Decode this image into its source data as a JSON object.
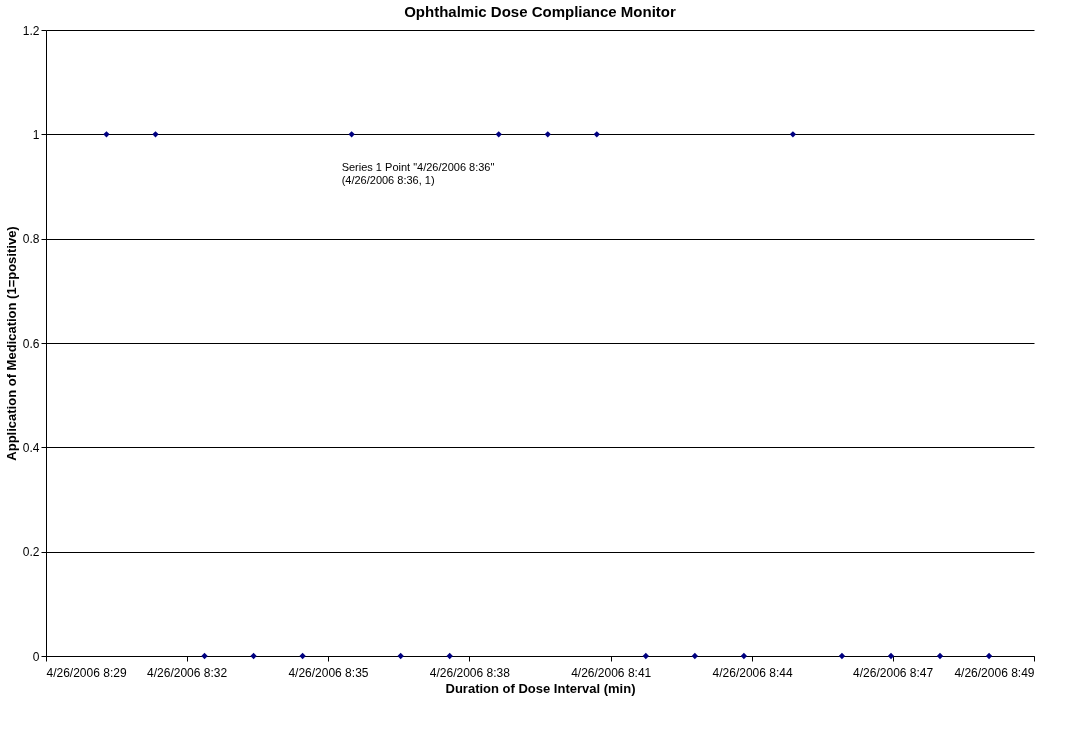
{
  "chart_data": {
    "type": "scatter",
    "title": "Ophthalmic Dose Compliance Monitor",
    "xlabel": "Duration of Dose Interval (min)",
    "ylabel": "Application of Medication (1=positive)",
    "x": [
      "2006-04-26T08:31",
      "2006-04-26T08:32",
      "2006-04-26T08:33",
      "2006-04-26T08:34",
      "2006-04-26T08:35",
      "2006-04-26T08:36",
      "2006-04-26T08:37",
      "2006-04-26T08:38",
      "2006-04-26T08:39",
      "2006-04-26T08:40",
      "2006-04-26T08:41",
      "2006-04-26T08:42",
      "2006-04-26T08:43",
      "2006-04-26T08:44",
      "2006-04-26T08:45",
      "2006-04-26T08:46",
      "2006-04-26T08:47",
      "2006-04-26T08:48",
      "2006-04-26T08:49"
    ],
    "series": [
      {
        "color": "#000080",
        "values": [
          1,
          1,
          0,
          0,
          0,
          1,
          0,
          0,
          1,
          1,
          1,
          0,
          0,
          0,
          1,
          0,
          0,
          0,
          0
        ]
      }
    ],
    "xlim": [
      "2006-04-26T08:29:46",
      "2006-04-26T08:49:55"
    ],
    "xticks": [
      {
        "value": "2006-04-26T08:29:46",
        "label": "4/26/2006 8:29"
      },
      {
        "value": "2006-04-26T08:32:38",
        "label": "4/26/2006 8:32"
      },
      {
        "value": "2006-04-26T08:35:31",
        "label": "4/26/2006 8:35"
      },
      {
        "value": "2006-04-26T08:38:24",
        "label": "4/26/2006 8:38"
      },
      {
        "value": "2006-04-26T08:41:17",
        "label": "4/26/2006 8:41"
      },
      {
        "value": "2006-04-26T08:44:10",
        "label": "4/26/2006 8:44"
      },
      {
        "value": "2006-04-26T08:47:02",
        "label": "4/26/2006 8:47"
      },
      {
        "value": "2006-04-26T08:49:55",
        "label": "4/26/2006 8:49"
      }
    ],
    "ylim": [
      0,
      1.2
    ],
    "yticks": [
      0,
      0.2,
      0.4,
      0.6,
      0.8,
      1,
      1.2
    ],
    "grid": "y",
    "marker": "diamond",
    "legend": false,
    "annotations": [
      {
        "text": "Series 1 Point \"4/26/2006 8:36\"\n(4/26/2006 8:36, 1)",
        "x": "2006-04-26T08:36",
        "y": 1
      }
    ]
  }
}
